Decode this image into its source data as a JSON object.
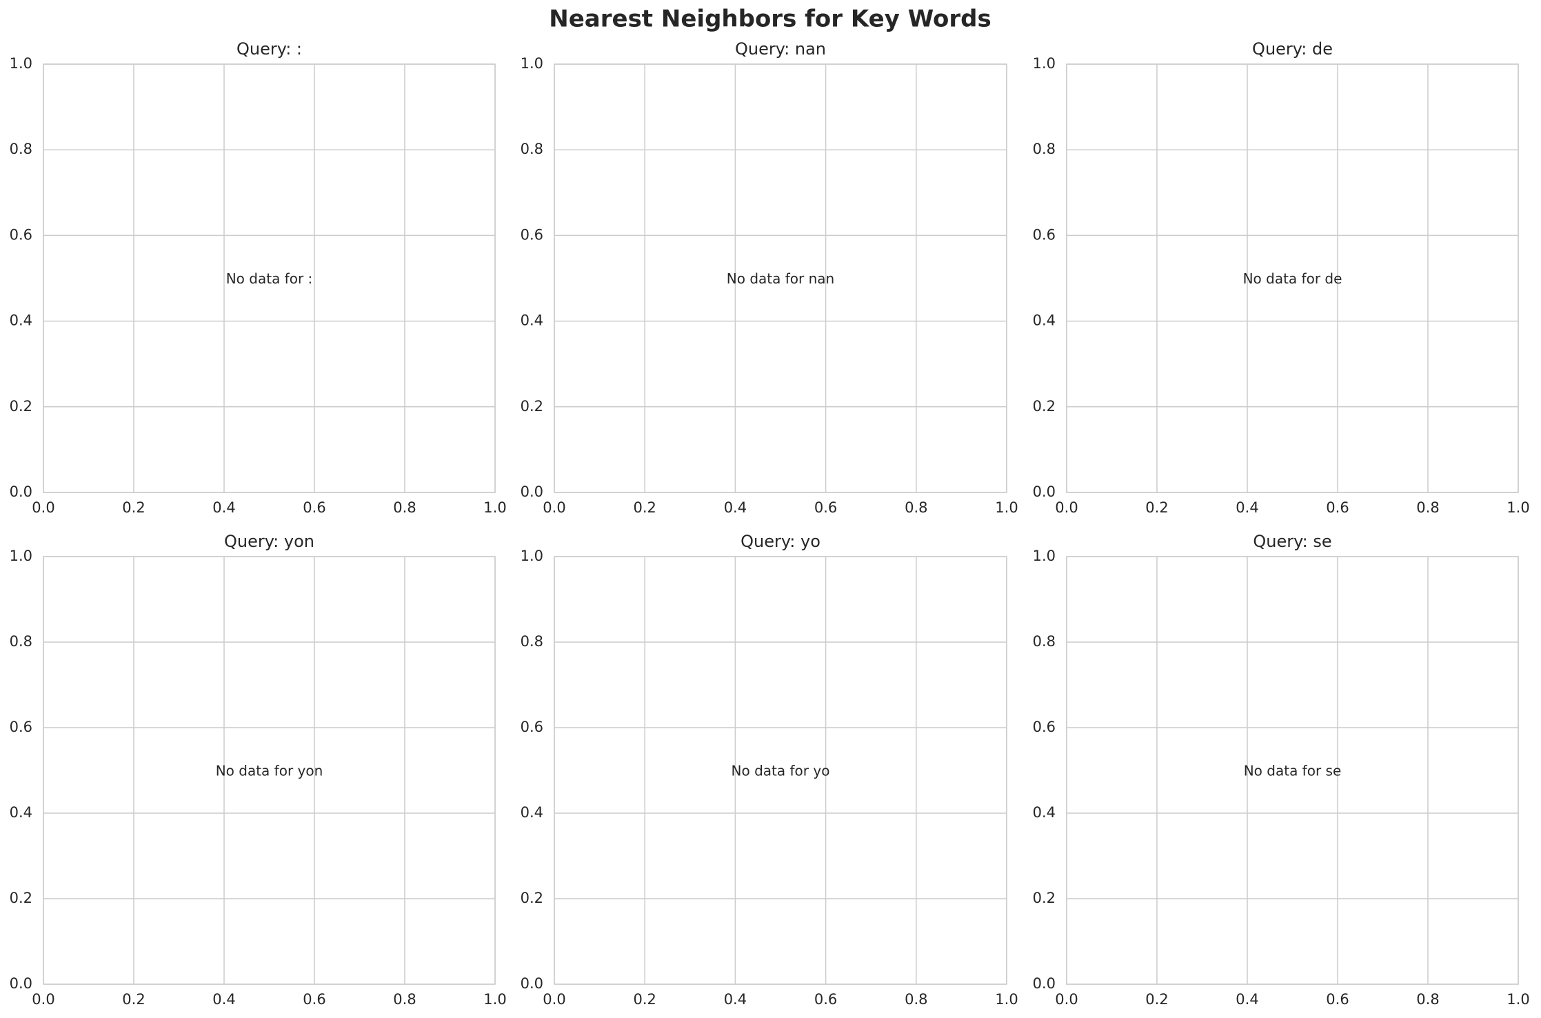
{
  "title": "Nearest Neighbors for Key Words",
  "chart_data": [
    {
      "type": "scatter",
      "title": "Query: :",
      "annotation": "No data for :",
      "xlim": [
        0,
        1
      ],
      "ylim": [
        0,
        1
      ],
      "xticks": [
        {
          "value": 0,
          "label": "0.0"
        },
        0.2,
        0.4,
        0.6,
        0.8,
        {
          "value": 1,
          "label": "1.0"
        }
      ],
      "yticks": [
        {
          "value": 0,
          "label": "0.0"
        },
        0.2,
        0.4,
        0.6,
        0.8,
        {
          "value": 1,
          "label": "1.0"
        }
      ],
      "grid": true
    },
    {
      "type": "scatter",
      "title": "Query: nan",
      "annotation": "No data for nan",
      "xlim": [
        0,
        1
      ],
      "ylim": [
        0,
        1
      ],
      "xticks": [
        {
          "value": 0,
          "label": "0.0"
        },
        0.2,
        0.4,
        0.6,
        0.8,
        {
          "value": 1,
          "label": "1.0"
        }
      ],
      "yticks": [
        {
          "value": 0,
          "label": "0.0"
        },
        0.2,
        0.4,
        0.6,
        0.8,
        {
          "value": 1,
          "label": "1.0"
        }
      ],
      "grid": true
    },
    {
      "type": "scatter",
      "title": "Query: de",
      "annotation": "No data for de",
      "xlim": [
        0,
        1
      ],
      "ylim": [
        0,
        1
      ],
      "xticks": [
        {
          "value": 0,
          "label": "0.0"
        },
        0.2,
        0.4,
        0.6,
        0.8,
        {
          "value": 1,
          "label": "1.0"
        }
      ],
      "yticks": [
        {
          "value": 0,
          "label": "0.0"
        },
        0.2,
        0.4,
        0.6,
        0.8,
        {
          "value": 1,
          "label": "1.0"
        }
      ],
      "grid": true
    },
    {
      "type": "scatter",
      "title": "Query: yon",
      "annotation": "No data for yon",
      "xlim": [
        0,
        1
      ],
      "ylim": [
        0,
        1
      ],
      "xticks": [
        {
          "value": 0,
          "label": "0.0"
        },
        0.2,
        0.4,
        0.6,
        0.8,
        {
          "value": 1,
          "label": "1.0"
        }
      ],
      "yticks": [
        {
          "value": 0,
          "label": "0.0"
        },
        0.2,
        0.4,
        0.6,
        0.8,
        {
          "value": 1,
          "label": "1.0"
        }
      ],
      "grid": true
    },
    {
      "type": "scatter",
      "title": "Query: yo",
      "annotation": "No data for yo",
      "xlim": [
        0,
        1
      ],
      "ylim": [
        0,
        1
      ],
      "xticks": [
        {
          "value": 0,
          "label": "0.0"
        },
        0.2,
        0.4,
        0.6,
        0.8,
        {
          "value": 1,
          "label": "1.0"
        }
      ],
      "yticks": [
        {
          "value": 0,
          "label": "0.0"
        },
        0.2,
        0.4,
        0.6,
        0.8,
        {
          "value": 1,
          "label": "1.0"
        }
      ],
      "grid": true
    },
    {
      "type": "scatter",
      "title": "Query: se",
      "annotation": "No data for se",
      "xlim": [
        0,
        1
      ],
      "ylim": [
        0,
        1
      ],
      "xticks": [
        {
          "value": 0,
          "label": "0.0"
        },
        0.2,
        0.4,
        0.6,
        0.8,
        {
          "value": 1,
          "label": "1.0"
        }
      ],
      "yticks": [
        {
          "value": 0,
          "label": "0.0"
        },
        0.2,
        0.4,
        0.6,
        0.8,
        {
          "value": 1,
          "label": "1.0"
        }
      ],
      "grid": true
    }
  ]
}
